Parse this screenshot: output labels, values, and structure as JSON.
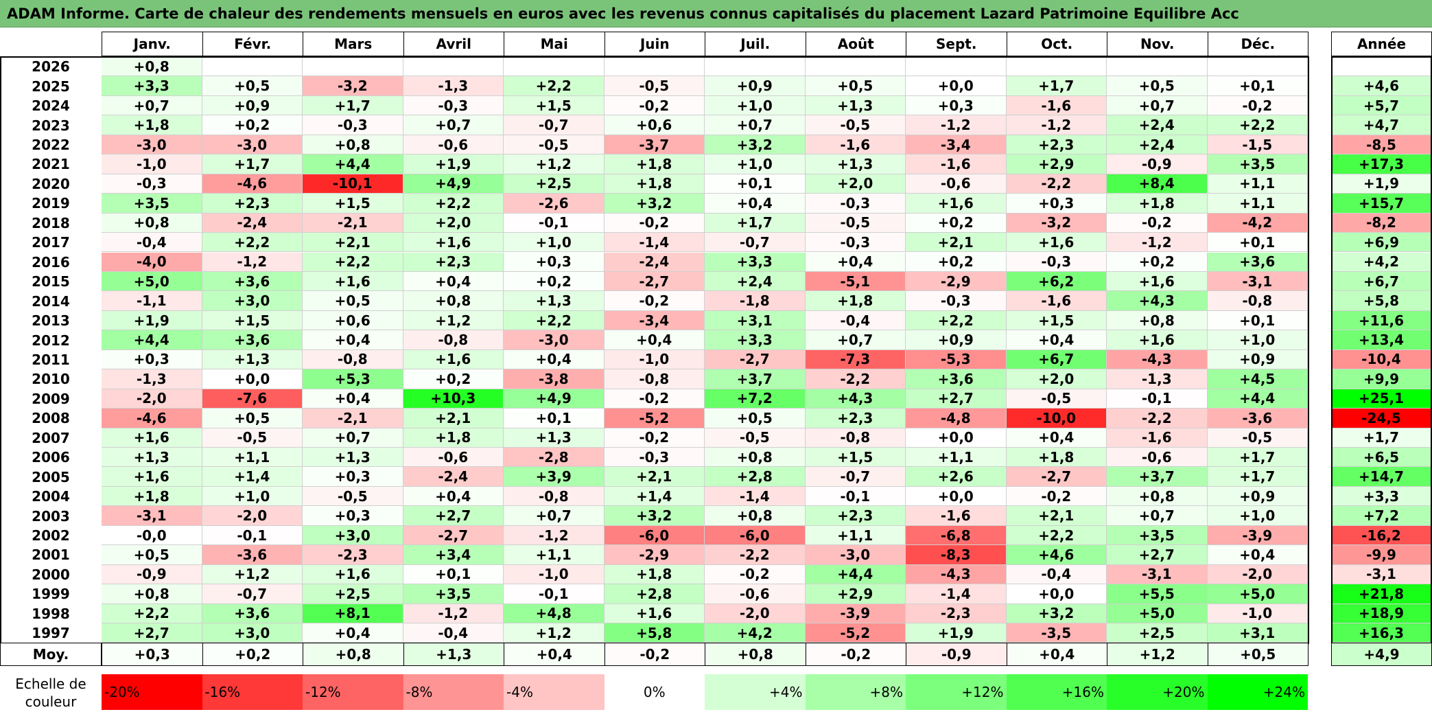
{
  "title": "ADAM Informe. Carte de chaleur des rendements mensuels en euros avec les revenus connus capitalisés du placement Lazard Patrimoine Equilibre Acc",
  "chart_data": {
    "type": "heatmap",
    "title": "ADAM Informe. Carte de chaleur des rendements mensuels en euros avec les revenus connus capitalisés du placement Lazard Patrimoine Equilibre Acc",
    "months": [
      "Janv.",
      "Févr.",
      "Mars",
      "Avril",
      "Mai",
      "Juin",
      "Juil.",
      "Août",
      "Sept.",
      "Oct.",
      "Nov.",
      "Déc."
    ],
    "year_header": "Année",
    "rows": [
      {
        "year": "2026",
        "values": [
          "+0,8",
          "",
          "",
          "",
          "",
          "",
          "",
          "",
          "",
          "",
          "",
          ""
        ],
        "annual": ""
      },
      {
        "year": "2025",
        "values": [
          "+3,3",
          "+0,5",
          "-3,2",
          "-1,3",
          "+2,2",
          "-0,5",
          "+0,9",
          "+0,5",
          "+0,0",
          "+1,7",
          "+0,5",
          "+0,1"
        ],
        "annual": "+4,6"
      },
      {
        "year": "2024",
        "values": [
          "+0,7",
          "+0,9",
          "+1,7",
          "-0,3",
          "+1,5",
          "-0,2",
          "+1,0",
          "+1,3",
          "+0,3",
          "-1,6",
          "+0,7",
          "-0,2"
        ],
        "annual": "+5,7"
      },
      {
        "year": "2023",
        "values": [
          "+1,8",
          "+0,2",
          "-0,3",
          "+0,7",
          "-0,7",
          "+0,6",
          "+0,7",
          "-0,5",
          "-1,2",
          "-1,2",
          "+2,4",
          "+2,2"
        ],
        "annual": "+4,7"
      },
      {
        "year": "2022",
        "values": [
          "-3,0",
          "-3,0",
          "+0,8",
          "-0,6",
          "-0,5",
          "-3,7",
          "+3,2",
          "-1,6",
          "-3,4",
          "+2,3",
          "+2,4",
          "-1,5"
        ],
        "annual": "-8,5"
      },
      {
        "year": "2021",
        "values": [
          "-1,0",
          "+1,7",
          "+4,4",
          "+1,9",
          "+1,2",
          "+1,8",
          "+1,0",
          "+1,3",
          "-1,6",
          "+2,9",
          "-0,9",
          "+3,5"
        ],
        "annual": "+17,3"
      },
      {
        "year": "2020",
        "values": [
          "-0,3",
          "-4,6",
          "-10,1",
          "+4,9",
          "+2,5",
          "+1,8",
          "+0,1",
          "+2,0",
          "-0,6",
          "-2,2",
          "+8,4",
          "+1,1"
        ],
        "annual": "+1,9"
      },
      {
        "year": "2019",
        "values": [
          "+3,5",
          "+2,3",
          "+1,5",
          "+2,2",
          "-2,6",
          "+3,2",
          "+0,4",
          "-0,3",
          "+1,6",
          "+0,3",
          "+1,8",
          "+1,1"
        ],
        "annual": "+15,7"
      },
      {
        "year": "2018",
        "values": [
          "+0,8",
          "-2,4",
          "-2,1",
          "+2,0",
          "-0,1",
          "-0,2",
          "+1,7",
          "-0,5",
          "+0,2",
          "-3,2",
          "-0,2",
          "-4,2"
        ],
        "annual": "-8,2"
      },
      {
        "year": "2017",
        "values": [
          "-0,4",
          "+2,2",
          "+2,1",
          "+1,6",
          "+1,0",
          "-1,4",
          "-0,7",
          "-0,3",
          "+2,1",
          "+1,6",
          "-1,2",
          "+0,1"
        ],
        "annual": "+6,9"
      },
      {
        "year": "2016",
        "values": [
          "-4,0",
          "-1,2",
          "+2,2",
          "+2,3",
          "+0,3",
          "-2,4",
          "+3,3",
          "+0,4",
          "+0,2",
          "-0,3",
          "+0,2",
          "+3,6"
        ],
        "annual": "+4,2"
      },
      {
        "year": "2015",
        "values": [
          "+5,0",
          "+3,6",
          "+1,6",
          "+0,4",
          "+0,2",
          "-2,7",
          "+2,4",
          "-5,1",
          "-2,9",
          "+6,2",
          "+1,6",
          "-3,1"
        ],
        "annual": "+6,7"
      },
      {
        "year": "2014",
        "values": [
          "-1,1",
          "+3,0",
          "+0,5",
          "+0,8",
          "+1,3",
          "-0,2",
          "-1,8",
          "+1,8",
          "-0,3",
          "-1,6",
          "+4,3",
          "-0,8"
        ],
        "annual": "+5,8"
      },
      {
        "year": "2013",
        "values": [
          "+1,9",
          "+1,5",
          "+0,6",
          "+1,2",
          "+2,2",
          "-3,4",
          "+3,1",
          "-0,4",
          "+2,2",
          "+1,5",
          "+0,8",
          "+0,1"
        ],
        "annual": "+11,6"
      },
      {
        "year": "2012",
        "values": [
          "+4,4",
          "+3,6",
          "+0,4",
          "-0,8",
          "-3,0",
          "+0,4",
          "+3,3",
          "+0,7",
          "+0,9",
          "+0,4",
          "+1,6",
          "+1,0"
        ],
        "annual": "+13,4"
      },
      {
        "year": "2011",
        "values": [
          "+0,3",
          "+1,3",
          "-0,8",
          "+1,6",
          "+0,4",
          "-1,0",
          "-2,7",
          "-7,3",
          "-5,3",
          "+6,7",
          "-4,3",
          "+0,9"
        ],
        "annual": "-10,4"
      },
      {
        "year": "2010",
        "values": [
          "-1,3",
          "+0,0",
          "+5,3",
          "+0,2",
          "-3,8",
          "-0,8",
          "+3,7",
          "-2,2",
          "+3,6",
          "+2,0",
          "-1,3",
          "+4,5"
        ],
        "annual": "+9,9"
      },
      {
        "year": "2009",
        "values": [
          "-2,0",
          "-7,6",
          "+0,4",
          "+10,3",
          "+4,9",
          "-0,2",
          "+7,2",
          "+4,3",
          "+2,7",
          "-0,5",
          "-0,1",
          "+4,4"
        ],
        "annual": "+25,1"
      },
      {
        "year": "2008",
        "values": [
          "-4,6",
          "+0,5",
          "-2,1",
          "+2,1",
          "+0,1",
          "-5,2",
          "+0,5",
          "+2,3",
          "-4,8",
          "-10,0",
          "-2,2",
          "-3,6"
        ],
        "annual": "-24,5"
      },
      {
        "year": "2007",
        "values": [
          "+1,6",
          "-0,5",
          "+0,7",
          "+1,8",
          "+1,3",
          "-0,2",
          "-0,5",
          "-0,8",
          "+0,0",
          "+0,4",
          "-1,6",
          "-0,5"
        ],
        "annual": "+1,7"
      },
      {
        "year": "2006",
        "values": [
          "+1,3",
          "+1,1",
          "+1,3",
          "-0,6",
          "-2,8",
          "-0,3",
          "+0,8",
          "+1,5",
          "+1,1",
          "+1,8",
          "-0,6",
          "+1,7"
        ],
        "annual": "+6,5"
      },
      {
        "year": "2005",
        "values": [
          "+1,6",
          "+1,4",
          "+0,3",
          "-2,4",
          "+3,9",
          "+2,1",
          "+2,8",
          "-0,7",
          "+2,6",
          "-2,7",
          "+3,7",
          "+1,7"
        ],
        "annual": "+14,7"
      },
      {
        "year": "2004",
        "values": [
          "+1,8",
          "+1,0",
          "-0,5",
          "+0,4",
          "-0,8",
          "+1,4",
          "-1,4",
          "-0,1",
          "+0,0",
          "-0,2",
          "+0,8",
          "+0,9"
        ],
        "annual": "+3,3"
      },
      {
        "year": "2003",
        "values": [
          "-3,1",
          "-2,0",
          "+0,3",
          "+2,7",
          "+0,7",
          "+3,2",
          "+0,8",
          "+2,3",
          "-1,6",
          "+2,1",
          "+0,7",
          "+1,0"
        ],
        "annual": "+7,2"
      },
      {
        "year": "2002",
        "values": [
          "-0,0",
          "-0,1",
          "+3,0",
          "-2,7",
          "-1,2",
          "-6,0",
          "-6,0",
          "+1,1",
          "-6,8",
          "+2,2",
          "+3,5",
          "-3,9"
        ],
        "annual": "-16,2"
      },
      {
        "year": "2001",
        "values": [
          "+0,5",
          "-3,6",
          "-2,3",
          "+3,4",
          "+1,1",
          "-2,9",
          "-2,2",
          "-3,0",
          "-8,3",
          "+4,6",
          "+2,7",
          "+0,4"
        ],
        "annual": "-9,9"
      },
      {
        "year": "2000",
        "values": [
          "-0,9",
          "+1,2",
          "+1,6",
          "+0,1",
          "-1,0",
          "+1,8",
          "-0,2",
          "+4,4",
          "-4,3",
          "-0,4",
          "-3,1",
          "-2,0"
        ],
        "annual": "-3,1"
      },
      {
        "year": "1999",
        "values": [
          "+0,8",
          "-0,7",
          "+2,5",
          "+3,5",
          "-0,1",
          "+2,8",
          "-0,6",
          "+2,9",
          "-1,4",
          "+0,0",
          "+5,5",
          "+5,0"
        ],
        "annual": "+21,8"
      },
      {
        "year": "1998",
        "values": [
          "+2,2",
          "+3,6",
          "+8,1",
          "-1,2",
          "+4,8",
          "+1,6",
          "-2,0",
          "-3,9",
          "-2,3",
          "+3,2",
          "+5,0",
          "-1,0"
        ],
        "annual": "+18,9"
      },
      {
        "year": "1997",
        "values": [
          "+2,7",
          "+3,0",
          "+0,4",
          "-0,4",
          "+1,2",
          "+5,8",
          "+4,2",
          "-5,2",
          "+1,9",
          "-3,5",
          "+2,5",
          "+3,1"
        ],
        "annual": "+16,3"
      }
    ],
    "average": {
      "label": "Moy.",
      "values": [
        "+0,3",
        "+0,2",
        "+0,8",
        "+1,3",
        "+0,4",
        "-0,2",
        "+0,8",
        "-0,2",
        "-0,9",
        "+0,4",
        "+1,2",
        "+0,5"
      ],
      "annual": "+4,9"
    },
    "scale": {
      "label_line1": "Echelle de",
      "label_line2": "couleur",
      "steps": [
        {
          "label": "-20%",
          "value": -20,
          "color": "#ff0000"
        },
        {
          "label": "-16%",
          "value": -16,
          "color": "#ff3838"
        },
        {
          "label": "-12%",
          "value": -12,
          "color": "#ff6464"
        },
        {
          "label": "-8%",
          "value": -8,
          "color": "#ff9494"
        },
        {
          "label": "-4%",
          "value": -4,
          "color": "#ffc4c4"
        },
        {
          "label": "0%",
          "value": 0,
          "color": "#ffffff"
        },
        {
          "label": "+4%",
          "value": 4,
          "color": "#d4ffd4"
        },
        {
          "label": "+8%",
          "value": 8,
          "color": "#a8ffa8"
        },
        {
          "label": "+12%",
          "value": 12,
          "color": "#7cff7c"
        },
        {
          "label": "+16%",
          "value": 16,
          "color": "#50ff50"
        },
        {
          "label": "+20%",
          "value": 20,
          "color": "#28ff28"
        },
        {
          "label": "+24%",
          "value": 24,
          "color": "#00ff00"
        }
      ]
    }
  }
}
